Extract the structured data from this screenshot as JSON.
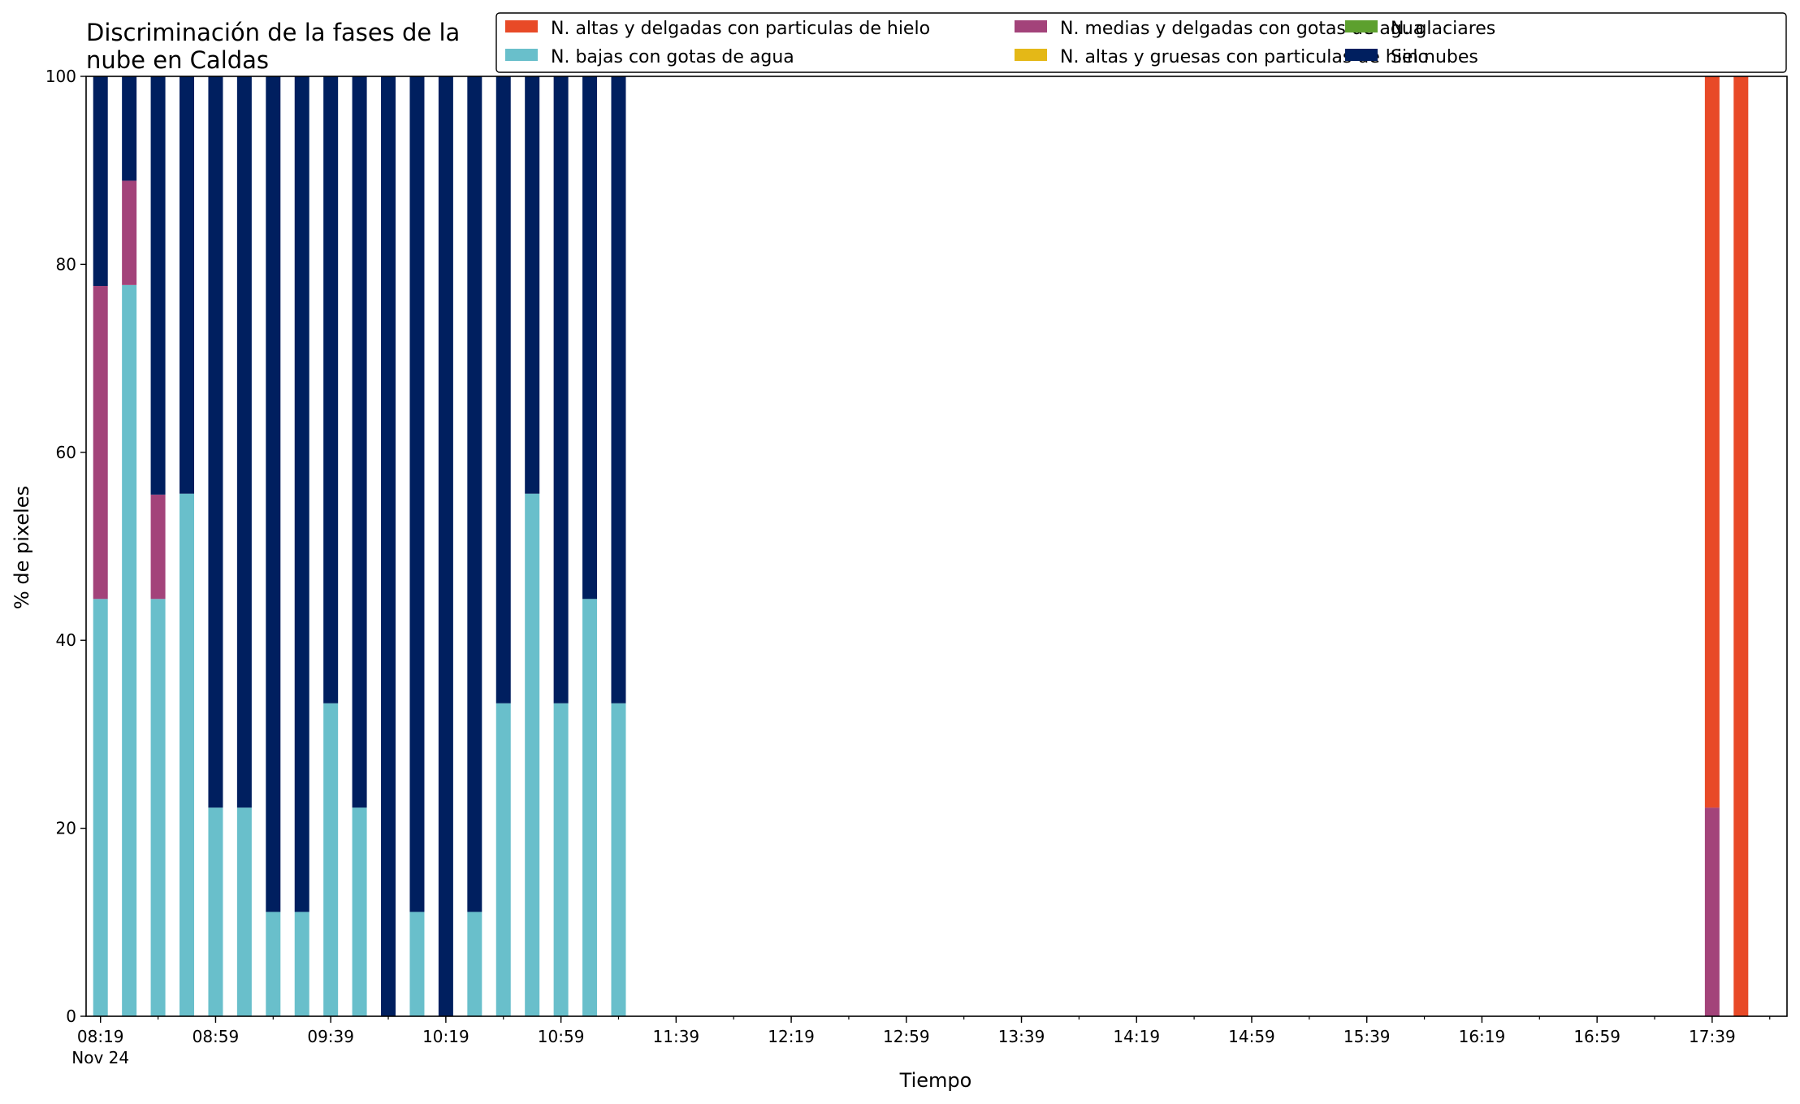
{
  "chart_data": {
    "type": "bar",
    "stacked": true,
    "title_lines": [
      "Discriminación de la fases de la",
      "nube en Caldas"
    ],
    "xlabel": "Tiempo",
    "ylabel": "% de pixeles",
    "ylim": [
      0,
      100
    ],
    "yticks": [
      "0",
      "20",
      "40",
      "60",
      "80",
      "100"
    ],
    "xtick_labels": [
      "08:19",
      "08:59",
      "09:39",
      "10:19",
      "10:59",
      "11:39",
      "12:19",
      "12:59",
      "13:39",
      "14:19",
      "14:59",
      "15:39",
      "16:19",
      "16:59",
      "17:39"
    ],
    "x_date_label": "Nov 24",
    "x_start": "08:19",
    "x_end": "17:59",
    "minor_tick_minutes": 20,
    "legend_position": "top-right",
    "grid": false,
    "categories": [
      "08:19",
      "08:29",
      "08:39",
      "08:49",
      "08:59",
      "09:09",
      "09:19",
      "09:29",
      "09:39",
      "09:49",
      "09:59",
      "10:09",
      "10:19",
      "10:29",
      "10:39",
      "10:49",
      "10:59",
      "11:09",
      "11:19",
      "17:39",
      "17:49"
    ],
    "series": [
      {
        "name": "N. altas y delgadas con particulas de hielo",
        "color": "#e84a27",
        "values": [
          0,
          0,
          0,
          0,
          0,
          0,
          0,
          0,
          0,
          0,
          0,
          0,
          0,
          0,
          0,
          0,
          0,
          0,
          0,
          77.8,
          100
        ]
      },
      {
        "name": "N. altas y gruesas con particulas de hielo",
        "color": "#e4b817",
        "values": [
          0,
          0,
          0,
          0,
          0,
          0,
          0,
          0,
          0,
          0,
          0,
          0,
          0,
          0,
          0,
          0,
          0,
          0,
          0,
          0,
          0
        ]
      },
      {
        "name": "N. bajas con gotas de agua",
        "color": "#69bfcb",
        "values": [
          44.4,
          77.8,
          44.4,
          55.6,
          22.2,
          22.2,
          11.1,
          11.1,
          33.3,
          22.2,
          0,
          11.1,
          0,
          11.1,
          33.3,
          55.6,
          33.3,
          44.4,
          33.3,
          0,
          0
        ]
      },
      {
        "name": "N. glaciares",
        "color": "#5da02e",
        "values": [
          0,
          0,
          0,
          0,
          0,
          0,
          0,
          0,
          0,
          0,
          0,
          0,
          0,
          0,
          0,
          0,
          0,
          0,
          0,
          0,
          0
        ]
      },
      {
        "name": "N. medias y delgadas con gotas de agua",
        "color": "#a3437a",
        "values": [
          33.3,
          11.1,
          11.1,
          0,
          0,
          0,
          0,
          0,
          0,
          0,
          0,
          0,
          0,
          0,
          0,
          0,
          0,
          0,
          0,
          22.2,
          0
        ]
      },
      {
        "name": "Sin nubes",
        "color": "#001f5f",
        "values": [
          22.3,
          11.1,
          44.5,
          44.4,
          77.8,
          77.8,
          88.9,
          88.9,
          66.7,
          77.8,
          100,
          88.9,
          100,
          88.9,
          66.7,
          44.4,
          66.7,
          55.6,
          66.7,
          0,
          0
        ]
      }
    ],
    "stack_order": [
      2,
      4,
      5,
      0,
      1,
      3
    ],
    "legend_order": [
      0,
      2,
      4,
      1,
      3,
      5
    ]
  }
}
